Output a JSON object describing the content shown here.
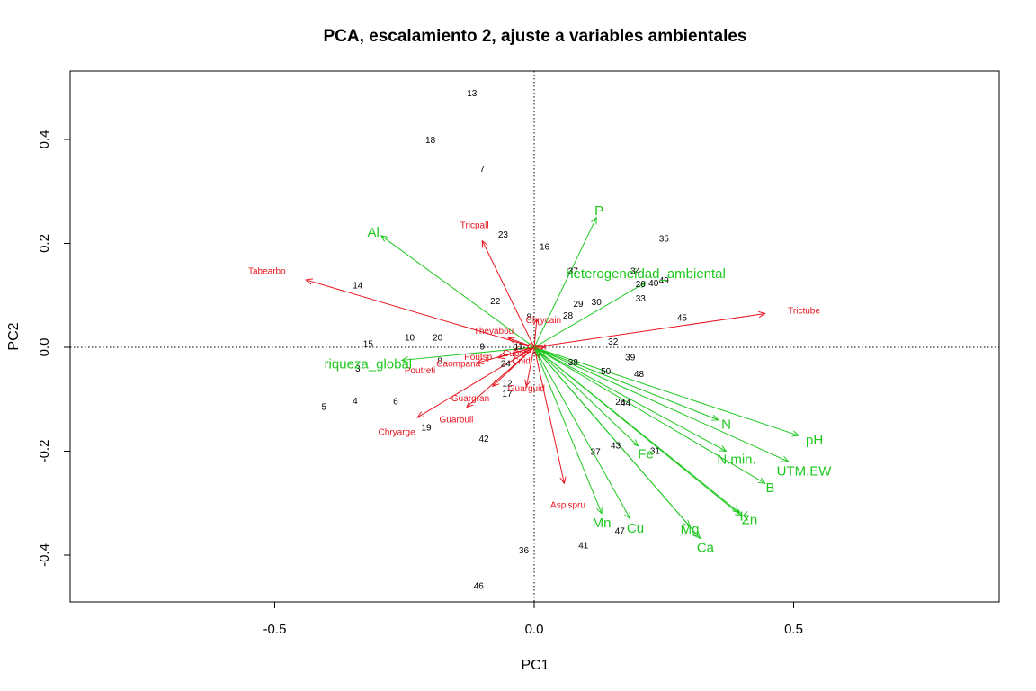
{
  "chart_data": {
    "type": "scatter",
    "title": "PCA, escalamiento 2, ajuste a variables ambientales",
    "xlabel": "PC1",
    "ylabel": "PC2",
    "xlim": [
      -0.9,
      0.9
    ],
    "ylim": [
      -0.49,
      0.54
    ],
    "x_ticks": [
      -0.5,
      0.0,
      0.5
    ],
    "x_tick_labels": [
      "-0.5",
      "0.0",
      "0.5"
    ],
    "y_ticks": [
      -0.4,
      -0.2,
      0.0,
      0.2,
      0.4
    ],
    "y_tick_labels": [
      "-0.4",
      "-0.2",
      "0.0",
      "0.2",
      "0.4"
    ],
    "reference_lines": {
      "x": 0,
      "y": 0,
      "style": "dotted"
    },
    "grid": false,
    "colors": {
      "sites": "#000000",
      "species": "#e8141f",
      "environment": "#1ec81e"
    },
    "sites": [
      {
        "label": "13",
        "x": -0.12,
        "y": 0.49
      },
      {
        "label": "18",
        "x": -0.2,
        "y": 0.4
      },
      {
        "label": "7",
        "x": -0.1,
        "y": 0.345
      },
      {
        "label": "23",
        "x": -0.06,
        "y": 0.218
      },
      {
        "label": "16",
        "x": 0.02,
        "y": 0.195
      },
      {
        "label": "35",
        "x": 0.25,
        "y": 0.21
      },
      {
        "label": "14",
        "x": -0.34,
        "y": 0.12
      },
      {
        "label": "37",
        "x": 0.075,
        "y": 0.148
      },
      {
        "label": "34",
        "x": 0.195,
        "y": 0.148
      },
      {
        "label": "26",
        "x": 0.205,
        "y": 0.123
      },
      {
        "label": "40",
        "x": 0.23,
        "y": 0.125
      },
      {
        "label": "49",
        "x": 0.25,
        "y": 0.13
      },
      {
        "label": "33",
        "x": 0.205,
        "y": 0.095
      },
      {
        "label": "22",
        "x": -0.075,
        "y": 0.09
      },
      {
        "label": "29",
        "x": 0.085,
        "y": 0.085
      },
      {
        "label": "30",
        "x": 0.12,
        "y": 0.088
      },
      {
        "label": "28",
        "x": 0.065,
        "y": 0.062
      },
      {
        "label": "8",
        "x": -0.01,
        "y": 0.06
      },
      {
        "label": "45",
        "x": 0.285,
        "y": 0.058
      },
      {
        "label": "10",
        "x": -0.24,
        "y": 0.02
      },
      {
        "label": "20",
        "x": -0.186,
        "y": 0.02
      },
      {
        "label": "15",
        "x": -0.32,
        "y": 0.008
      },
      {
        "label": "9",
        "x": -0.1,
        "y": 0.003
      },
      {
        "label": "11",
        "x": -0.03,
        "y": 0.003
      },
      {
        "label": "32",
        "x": 0.152,
        "y": 0.012
      },
      {
        "label": "39",
        "x": 0.185,
        "y": -0.018
      },
      {
        "label": "8",
        "x": -0.182,
        "y": -0.025
      },
      {
        "label": "24",
        "x": -0.055,
        "y": -0.03
      },
      {
        "label": "38",
        "x": 0.075,
        "y": -0.028
      },
      {
        "label": "50",
        "x": 0.138,
        "y": -0.045
      },
      {
        "label": "48",
        "x": 0.202,
        "y": -0.05
      },
      {
        "label": "3",
        "x": -0.34,
        "y": -0.04
      },
      {
        "label": "12",
        "x": -0.052,
        "y": -0.068
      },
      {
        "label": "17",
        "x": -0.052,
        "y": -0.088
      },
      {
        "label": "4",
        "x": -0.345,
        "y": -0.102
      },
      {
        "label": "6",
        "x": -0.267,
        "y": -0.103
      },
      {
        "label": "5",
        "x": -0.405,
        "y": -0.113
      },
      {
        "label": "25",
        "x": 0.166,
        "y": -0.104
      },
      {
        "label": "44",
        "x": 0.176,
        "y": -0.106
      },
      {
        "label": "19",
        "x": -0.208,
        "y": -0.153
      },
      {
        "label": "42",
        "x": -0.097,
        "y": -0.175
      },
      {
        "label": "43",
        "x": 0.157,
        "y": -0.188
      },
      {
        "label": "37",
        "x": 0.118,
        "y": -0.2
      },
      {
        "label": "31",
        "x": 0.233,
        "y": -0.198
      },
      {
        "label": "47",
        "x": 0.165,
        "y": -0.352
      },
      {
        "label": "41",
        "x": 0.095,
        "y": -0.38
      },
      {
        "label": "36",
        "x": -0.02,
        "y": -0.39
      },
      {
        "label": "46",
        "x": -0.107,
        "y": -0.458
      }
    ],
    "species": [
      {
        "label": "Tabearbo",
        "x": -0.44,
        "y": 0.13,
        "lx": -0.515,
        "ly": 0.148
      },
      {
        "label": "Tricpall",
        "x": -0.1,
        "y": 0.205,
        "lx": -0.115,
        "ly": 0.236
      },
      {
        "label": "Trictube",
        "x": 0.445,
        "y": 0.065,
        "lx": 0.52,
        "ly": 0.072
      },
      {
        "label": "Chrycain",
        "x": 0.005,
        "y": 0.055,
        "lx": 0.018,
        "ly": 0.054
      },
      {
        "label": "Thevabou",
        "x": -0.05,
        "y": 0.018,
        "lx": -0.078,
        "ly": 0.033
      },
      {
        "label": "Poutsp",
        "x": -0.04,
        "y": -0.005,
        "lx": -0.108,
        "ly": -0.017
      },
      {
        "label": "Poutreti",
        "x": -0.11,
        "y": -0.03,
        "lx": -0.22,
        "ly": -0.043
      },
      {
        "label": "Caompana",
        "x": -0.07,
        "y": -0.02,
        "lx": -0.146,
        "ly": -0.03
      },
      {
        "label": "Guarguid",
        "x": -0.015,
        "y": -0.075,
        "lx": -0.015,
        "ly": -0.078
      },
      {
        "label": "Guargran",
        "x": -0.08,
        "y": -0.075,
        "lx": -0.123,
        "ly": -0.097
      },
      {
        "label": "Guarbull",
        "x": -0.13,
        "y": -0.115,
        "lx": -0.15,
        "ly": -0.138
      },
      {
        "label": "Chryarge",
        "x": -0.225,
        "y": -0.135,
        "lx": -0.265,
        "ly": -0.162
      },
      {
        "label": "Aspispru",
        "x": 0.058,
        "y": -0.262,
        "lx": 0.065,
        "ly": -0.302
      },
      {
        "label": "Cupa",
        "x": -0.02,
        "y": -0.01,
        "lx": -0.04,
        "ly": -0.01
      },
      {
        "label": "Cnid",
        "x": 0.01,
        "y": -0.02,
        "lx": -0.025,
        "ly": -0.025
      },
      {
        "label": "Ocot",
        "x": 0.02,
        "y": 0.0,
        "lx": 0.005,
        "ly": 0.003
      }
    ],
    "environment": [
      {
        "label": "P",
        "x": 0.12,
        "y": 0.25,
        "lx": 0.125,
        "ly": 0.263
      },
      {
        "label": "Al",
        "x": -0.295,
        "y": 0.215,
        "lx": -0.31,
        "ly": 0.222
      },
      {
        "label": "heterogeneidad_ambiental",
        "x": 0.215,
        "y": 0.125,
        "lx": 0.215,
        "ly": 0.142
      },
      {
        "label": "riqueza_global",
        "x": -0.255,
        "y": -0.025,
        "lx": -0.32,
        "ly": -0.032
      },
      {
        "label": "N",
        "x": 0.355,
        "y": -0.14,
        "lx": 0.37,
        "ly": -0.148
      },
      {
        "label": "pH",
        "x": 0.51,
        "y": -0.17,
        "lx": 0.54,
        "ly": -0.178
      },
      {
        "label": "N.min.",
        "x": 0.37,
        "y": -0.2,
        "lx": 0.39,
        "ly": -0.216
      },
      {
        "label": "UTM.EW",
        "x": 0.49,
        "y": -0.22,
        "lx": 0.52,
        "ly": -0.238
      },
      {
        "label": "B",
        "x": 0.445,
        "y": -0.262,
        "lx": 0.455,
        "ly": -0.27
      },
      {
        "label": "Fe",
        "x": 0.2,
        "y": -0.19,
        "lx": 0.215,
        "ly": -0.205
      },
      {
        "label": "K",
        "x": 0.395,
        "y": -0.318,
        "lx": 0.405,
        "ly": -0.325
      },
      {
        "label": "Zn",
        "x": 0.4,
        "y": -0.325,
        "lx": 0.415,
        "ly": -0.332
      },
      {
        "label": "Mg",
        "x": 0.3,
        "y": -0.345,
        "lx": 0.3,
        "ly": -0.35
      },
      {
        "label": "Ca",
        "x": 0.32,
        "y": -0.368,
        "lx": 0.33,
        "ly": -0.385
      },
      {
        "label": "Mn",
        "x": 0.13,
        "y": -0.32,
        "lx": 0.13,
        "ly": -0.338
      },
      {
        "label": "Cu",
        "x": 0.185,
        "y": -0.33,
        "lx": 0.195,
        "ly": -0.348
      }
    ]
  }
}
